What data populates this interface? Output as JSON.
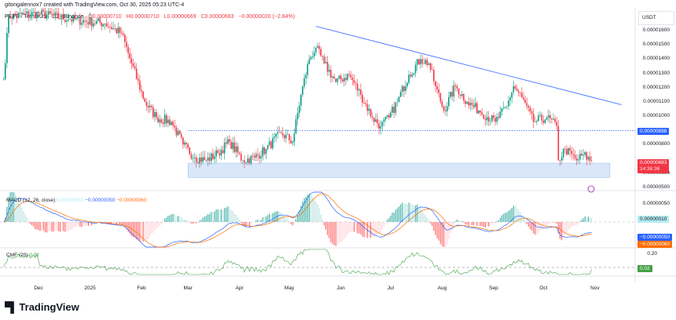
{
  "header": {
    "attribution": "gitongalennox7 created with TradingView.com, Oct 30, 2025 05:23 UTC-4",
    "symbol": "PEPE / TetherUS · 1D · Binance",
    "open": "O0.00000710",
    "high": "H0.00000710",
    "low": "L0.00000669",
    "close": "C0.00000683",
    "change": "−0.00000020 (−2.84%)"
  },
  "price_axis": {
    "currency": "USDT",
    "ticks": [
      "0.00001600",
      "0.00001500",
      "0.00001400",
      "0.00001300",
      "0.00001200",
      "0.00001100",
      "0.00001000",
      "0.00000800",
      "0.00000600",
      "0.00000500"
    ],
    "tick_values": [
      16,
      15,
      14,
      13,
      12,
      11,
      10,
      8,
      6,
      5
    ],
    "level_label": "0.00000898",
    "last_price_label": "0.00000683",
    "countdown": "14:36:36"
  },
  "macd": {
    "title": "MACD (12, 26, close)",
    "hist_value": "0.00000010",
    "macd_value": "−0.00000050",
    "signal_value": "−0.00000060",
    "axis_tick": "0.00000050"
  },
  "cmf": {
    "title": "CMF (20)",
    "value": "0.02",
    "axis_tick": "0.20",
    "tag_value": "0.02"
  },
  "x_axis": {
    "labels": [
      "Dec",
      "2025",
      "Feb",
      "Mar",
      "Apr",
      "May",
      "Jun",
      "Jul",
      "Aug",
      "Sep",
      "Oct",
      "Nov"
    ],
    "dates": [
      "2024-12-01",
      "2025-01-01",
      "2025-02-01",
      "2025-03-01",
      "2025-04-01",
      "2025-05-01",
      "2025-06-01",
      "2025-07-01",
      "2025-08-01",
      "2025-09-01",
      "2025-10-01",
      "2025-11-01"
    ]
  },
  "branding": {
    "logo_text": "TradingView"
  },
  "colors": {
    "up": "#089981",
    "down": "#f23645",
    "trendline": "#2962ff",
    "level": "#2962ff",
    "support_zone": "#bbd4f7",
    "macd_line": "#2962ff",
    "signal_line": "#ff6d00",
    "cmf_line": "#43a047"
  },
  "chart_data": {
    "type": "candlestick",
    "unit": "USDT (×1e-6)",
    "ylim": [
      5,
      16.6
    ],
    "close_path": [
      [
        "2024-11-10",
        12.6
      ],
      [
        "2024-11-13",
        17.0
      ],
      [
        "2024-12-01",
        17.2
      ],
      [
        "2024-12-20",
        16.8
      ],
      [
        "2025-01-10",
        16.5
      ],
      [
        "2025-01-20",
        15.8
      ],
      [
        "2025-01-26",
        13.7
      ],
      [
        "2025-02-03",
        11.0
      ],
      [
        "2025-02-10",
        9.9
      ],
      [
        "2025-02-19",
        9.6
      ],
      [
        "2025-02-26",
        8.0
      ],
      [
        "2025-03-05",
        7.1
      ],
      [
        "2025-03-12",
        6.9
      ],
      [
        "2025-03-19",
        7.4
      ],
      [
        "2025-03-26",
        8.2
      ],
      [
        "2025-04-03",
        6.9
      ],
      [
        "2025-04-10",
        7.1
      ],
      [
        "2025-04-17",
        7.7
      ],
      [
        "2025-04-26",
        8.8
      ],
      [
        "2025-05-03",
        8.2
      ],
      [
        "2025-05-08",
        11.5
      ],
      [
        "2025-05-13",
        14.0
      ],
      [
        "2025-05-17",
        14.8
      ],
      [
        "2025-05-22",
        13.7
      ],
      [
        "2025-05-29",
        12.4
      ],
      [
        "2025-06-06",
        12.9
      ],
      [
        "2025-06-13",
        11.5
      ],
      [
        "2025-06-20",
        9.9
      ],
      [
        "2025-06-25",
        9.3
      ],
      [
        "2025-06-30",
        9.9
      ],
      [
        "2025-07-05",
        11.0
      ],
      [
        "2025-07-12",
        12.9
      ],
      [
        "2025-07-19",
        14.0
      ],
      [
        "2025-07-24",
        13.7
      ],
      [
        "2025-07-28",
        12.1
      ],
      [
        "2025-08-02",
        10.4
      ],
      [
        "2025-08-09",
        12.1
      ],
      [
        "2025-08-16",
        11.0
      ],
      [
        "2025-08-23",
        10.4
      ],
      [
        "2025-09-02",
        9.6
      ],
      [
        "2025-09-09",
        10.7
      ],
      [
        "2025-09-13",
        12.1
      ],
      [
        "2025-09-18",
        11.3
      ],
      [
        "2025-09-25",
        9.6
      ],
      [
        "2025-10-03",
        9.9
      ],
      [
        "2025-10-09",
        9.3
      ],
      [
        "2025-10-10",
        6.9
      ],
      [
        "2025-10-14",
        7.7
      ],
      [
        "2025-10-21",
        6.9
      ],
      [
        "2025-10-25",
        7.3
      ],
      [
        "2025-10-30",
        6.83
      ]
    ],
    "trendline": [
      [
        "2025-05-17",
        16.3
      ],
      [
        "2025-11-17",
        10.8
      ]
    ],
    "horizontal_level": 8.98,
    "support_zone": {
      "from": "2025-03-01",
      "to": "2025-11-10",
      "low": 5.7,
      "high": 6.7
    }
  }
}
